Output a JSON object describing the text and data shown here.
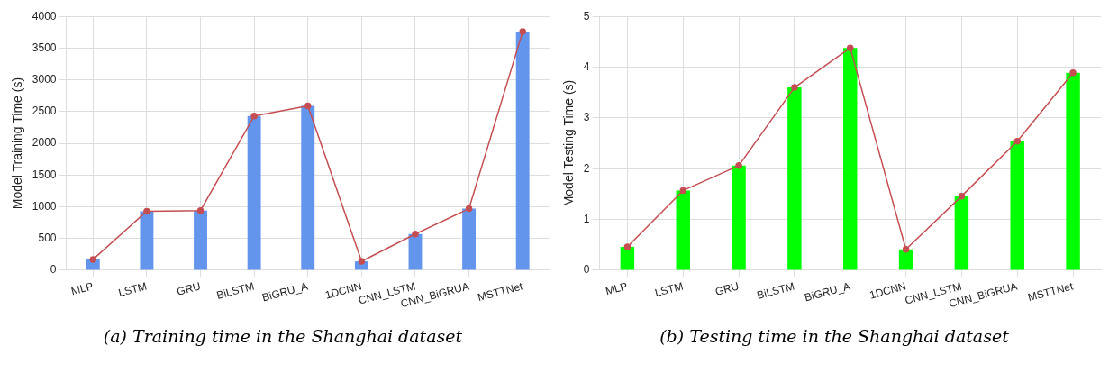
{
  "chart_data": [
    {
      "type": "bar",
      "ylabel": "Model Training Time (s)",
      "categories": [
        "MLP",
        "LSTM",
        "GRU",
        "BiLSTM",
        "BiGRU_A",
        "1DCNN",
        "CNN_LSTM",
        "CNN_BiGRUA",
        "MSTTNet"
      ],
      "series": [
        {
          "color": "#6495ed",
          "values": [
            170,
            930,
            940,
            2430,
            2590,
            140,
            570,
            970,
            3760
          ]
        },
        {
          "type": "line",
          "color": "#c44e52",
          "values": [
            170,
            930,
            940,
            2430,
            2590,
            140,
            570,
            970,
            3760
          ]
        }
      ],
      "marker": "circle",
      "ylim": [
        0,
        4000
      ],
      "yticks": [
        0,
        500,
        1000,
        1500,
        2000,
        2500,
        3000,
        3500,
        4000
      ],
      "grid": true,
      "legend": false,
      "annotations": [
        "(a) Training time in the Shanghai dataset"
      ]
    },
    {
      "type": "bar",
      "ylabel": "Model Testing Time (s)",
      "categories": [
        "MLP",
        "LSTM",
        "GRU",
        "BiLSTM",
        "BiGRU_A",
        "1DCNN",
        "CNN_LSTM",
        "CNN_BiGRUA",
        "MSTTNet"
      ],
      "series": [
        {
          "color": "#00ff00",
          "values": [
            0.46,
            1.57,
            2.06,
            3.6,
            4.38,
            0.41,
            1.46,
            2.54,
            3.89
          ]
        },
        {
          "type": "line",
          "color": "#c44e52",
          "values": [
            0.46,
            1.57,
            2.06,
            3.6,
            4.38,
            0.41,
            1.46,
            2.54,
            3.89
          ]
        }
      ],
      "marker": "circle",
      "ylim": [
        0,
        5
      ],
      "yticks": [
        0,
        1,
        2,
        3,
        4,
        5
      ],
      "grid": true,
      "legend": false,
      "annotations": [
        "(b) Testing time in the Shanghai dataset"
      ]
    }
  ]
}
